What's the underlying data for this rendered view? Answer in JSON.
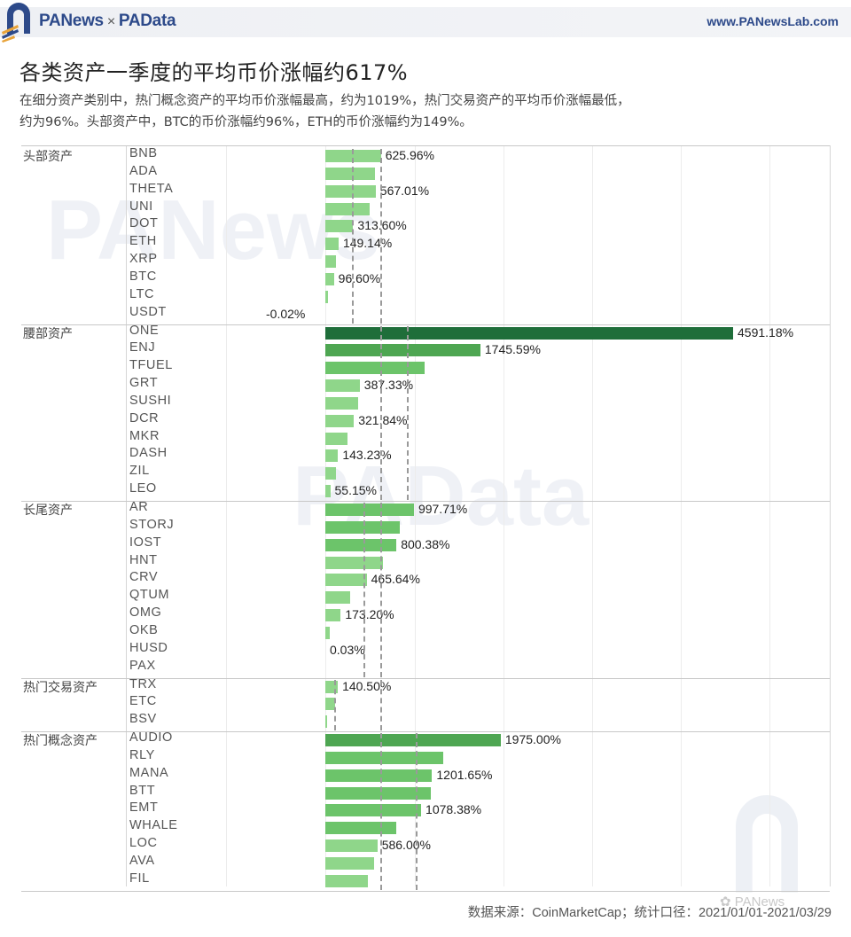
{
  "header": {
    "brand_left": "PANews",
    "brand_sep": "×",
    "brand_right": "PAData",
    "url": "www.PANewsLab.com"
  },
  "title": "各类资产一季度的平均币价涨幅约617%",
  "subtitle_line1": "在细分资产类别中，热门概念资产的平均币价涨幅最高，约为1019%，热门交易资产的平均币价涨幅最低，",
  "subtitle_line2": "约为96%。头部资产中，BTC的币价涨幅约96%，ETH的币价涨幅约为149%。",
  "watermarks": {
    "top": "PANews",
    "middle": "PAData",
    "wechat": "PANews"
  },
  "footer": {
    "source_label": "数据来源：",
    "source": "CoinMarketCap",
    "sep": "；",
    "period_label": "统计口径：",
    "period": "2021/01/01-2021/03/29"
  },
  "colors": {
    "bar_light": "#8fd68a",
    "bar_mid": "#6cc46a",
    "bar_dark": "#4ea652",
    "bar_darkest": "#1f6e3a",
    "brand_blue": "#2d4a8a",
    "brand_orange": "#e8a33a"
  },
  "chart_data": {
    "type": "bar",
    "orientation": "horizontal",
    "title": "各类资产一季度的平均币价涨幅约617%",
    "xlabel": "",
    "ylabel": "",
    "unit": "%",
    "grid": true,
    "reference_lines": "dashed lines per group (group average and overall average)",
    "groups": [
      {
        "name": "头部资产",
        "items": [
          {
            "label": "BNB",
            "value": 625.96,
            "shown": "625.96%"
          },
          {
            "label": "ADA",
            "value": 560,
            "shown": ""
          },
          {
            "label": "THETA",
            "value": 567.01,
            "shown": "567.01%"
          },
          {
            "label": "UNI",
            "value": 500,
            "shown": ""
          },
          {
            "label": "DOT",
            "value": 313.6,
            "shown": "313.60%"
          },
          {
            "label": "ETH",
            "value": 149.14,
            "shown": "149.14%"
          },
          {
            "label": "XRP",
            "value": 120,
            "shown": ""
          },
          {
            "label": "BTC",
            "value": 96.6,
            "shown": "96.60%"
          },
          {
            "label": "LTC",
            "value": 30,
            "shown": ""
          },
          {
            "label": "USDT",
            "value": -0.02,
            "shown": "-0.02%"
          }
        ],
        "ref_lines": [
          300,
          617
        ]
      },
      {
        "name": "腰部资产",
        "items": [
          {
            "label": "ONE",
            "value": 4591.18,
            "shown": "4591.18%"
          },
          {
            "label": "ENJ",
            "value": 1745.59,
            "shown": "1745.59%"
          },
          {
            "label": "TFUEL",
            "value": 1120,
            "shown": ""
          },
          {
            "label": "GRT",
            "value": 387.33,
            "shown": "387.33%"
          },
          {
            "label": "SUSHI",
            "value": 370,
            "shown": ""
          },
          {
            "label": "DCR",
            "value": 321.84,
            "shown": "321.84%"
          },
          {
            "label": "MKR",
            "value": 250,
            "shown": ""
          },
          {
            "label": "DASH",
            "value": 143.23,
            "shown": "143.23%"
          },
          {
            "label": "ZIL",
            "value": 120,
            "shown": ""
          },
          {
            "label": "LEO",
            "value": 55.15,
            "shown": "55.15%"
          }
        ],
        "ref_lines": [
          617,
          920
        ]
      },
      {
        "name": "长尾资产",
        "items": [
          {
            "label": "AR",
            "value": 997.71,
            "shown": "997.71%"
          },
          {
            "label": "STORJ",
            "value": 840,
            "shown": ""
          },
          {
            "label": "IOST",
            "value": 800.38,
            "shown": "800.38%"
          },
          {
            "label": "HNT",
            "value": 650,
            "shown": ""
          },
          {
            "label": "CRV",
            "value": 465.64,
            "shown": "465.64%"
          },
          {
            "label": "QTUM",
            "value": 280,
            "shown": ""
          },
          {
            "label": "OMG",
            "value": 173.2,
            "shown": "173.20%"
          },
          {
            "label": "OKB",
            "value": 50,
            "shown": ""
          },
          {
            "label": "HUSD",
            "value": 0.03,
            "shown": "0.03%"
          },
          {
            "label": "PAX",
            "value": 0,
            "shown": ""
          }
        ],
        "ref_lines": [
          430,
          617
        ]
      },
      {
        "name": "热门交易资产",
        "items": [
          {
            "label": "TRX",
            "value": 140.5,
            "shown": "140.50%"
          },
          {
            "label": "ETC",
            "value": 110,
            "shown": ""
          },
          {
            "label": "BSV",
            "value": 5,
            "shown": ""
          }
        ],
        "ref_lines": [
          96,
          617
        ]
      },
      {
        "name": "热门概念资产",
        "items": [
          {
            "label": "AUDIO",
            "value": 1975.0,
            "shown": "1975.00%"
          },
          {
            "label": "RLY",
            "value": 1330,
            "shown": ""
          },
          {
            "label": "MANA",
            "value": 1201.65,
            "shown": "1201.65%"
          },
          {
            "label": "BTT",
            "value": 1190,
            "shown": ""
          },
          {
            "label": "EMT",
            "value": 1078.38,
            "shown": "1078.38%"
          },
          {
            "label": "WHALE",
            "value": 800,
            "shown": ""
          },
          {
            "label": "LOC",
            "value": 586.0,
            "shown": "586.00%"
          },
          {
            "label": "AVA",
            "value": 550,
            "shown": ""
          },
          {
            "label": "FIL",
            "value": 480,
            "shown": ""
          }
        ],
        "ref_lines": [
          617,
          1019
        ]
      }
    ],
    "xlim": [
      -1100,
      5700
    ]
  }
}
